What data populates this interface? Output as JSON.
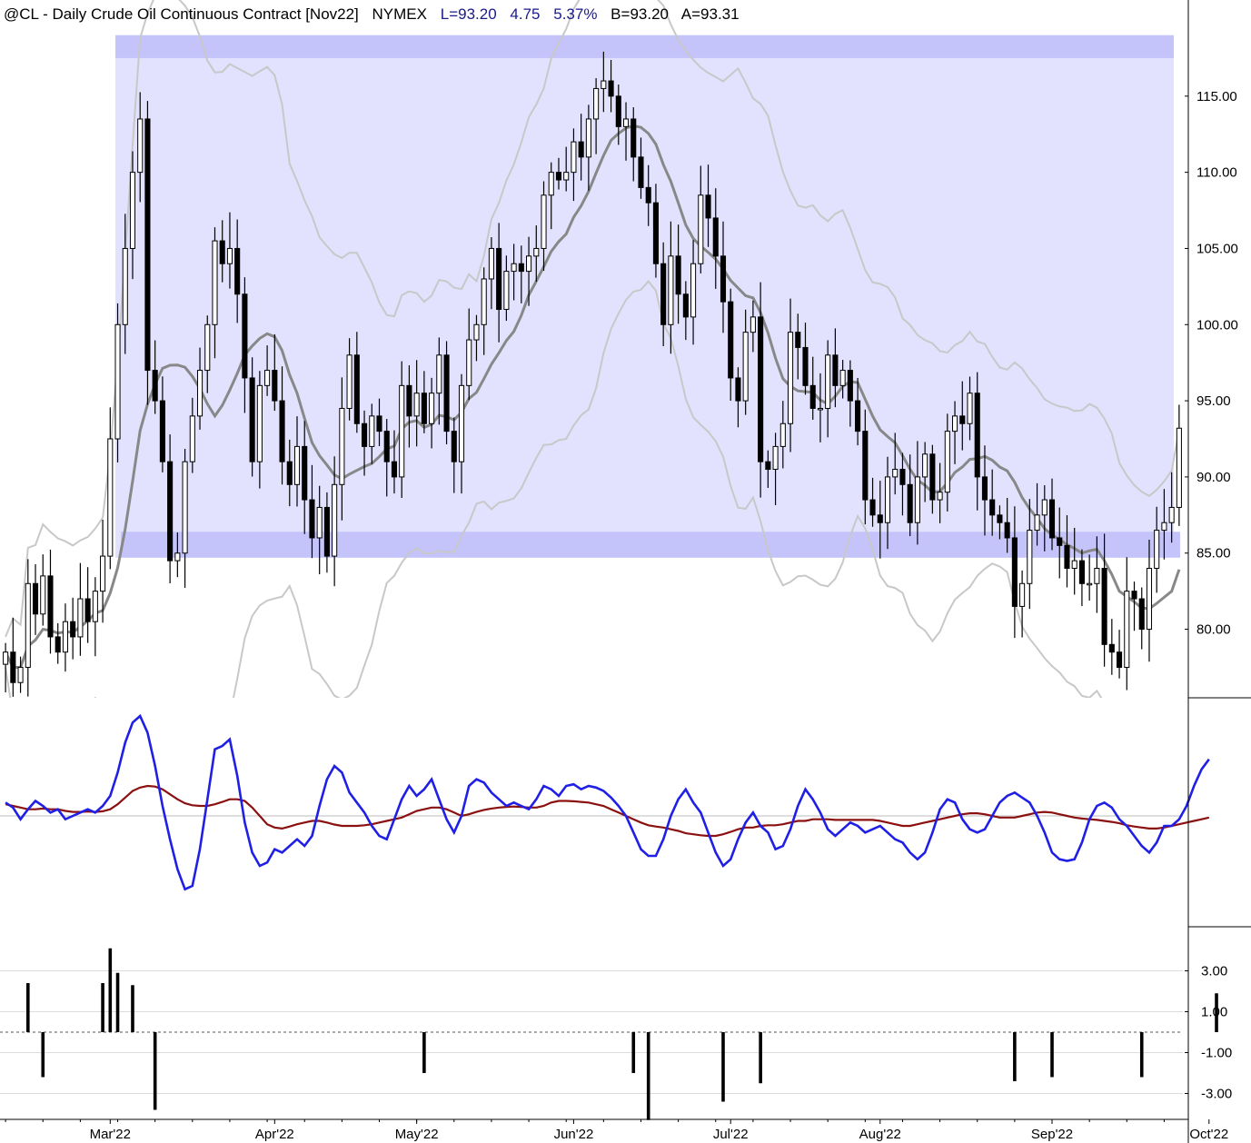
{
  "header": {
    "symbol_desc": "@CL - Daily  Crude Oil Continuous Contract [Nov22]",
    "exchange": "NYMEX",
    "last": "L=93.20",
    "change": "4.75",
    "change_pct": "5.37%",
    "bid": "B=93.20",
    "ask": "A=93.31"
  },
  "colors": {
    "range_fill": "#e2e2ff",
    "range_band": "#c4c4fa",
    "oscillator_fast": "#1f1fe6",
    "oscillator_slow": "#8b1010",
    "moving_average": "#888888",
    "bands": "#c8c8c8",
    "label_blue": "#1a1a8a"
  },
  "chart_data": [
    {
      "type": "candlestick",
      "panel": "price",
      "title": "@CL - Daily  Crude Oil Continuous Contract [Nov22]",
      "ylim": [
        75.5,
        120
      ],
      "yticks": [
        "80.00",
        "85.00",
        "90.00",
        "95.00",
        "100.00",
        "105.00",
        "110.00",
        "115.00"
      ],
      "x_month_labels": [
        {
          "label": "Mar'22",
          "index": 14
        },
        {
          "label": "Apr'22",
          "index": 36
        },
        {
          "label": "May'22",
          "index": 55
        },
        {
          "label": "Jun'22",
          "index": 76
        },
        {
          "label": "Jul'22",
          "index": 97
        },
        {
          "label": "Aug'22",
          "index": 117
        },
        {
          "label": "Sep'22",
          "index": 140
        },
        {
          "label": "Oct'22",
          "index": 161
        }
      ],
      "range_box": {
        "low": 84.7,
        "high": 119
      },
      "range_bands": [
        {
          "low": 117.5,
          "high": 119
        },
        {
          "low": 84.7,
          "high": 86.4
        }
      ],
      "close": [
        78.5,
        76.5,
        77.5,
        83.0,
        81.0,
        83.5,
        79.5,
        78.5,
        80.5,
        79.5,
        82.0,
        80.5,
        82.5,
        84.8,
        92.5,
        100.0,
        105.0,
        110.0,
        113.5,
        97.0,
        95.0,
        91.0,
        84.5,
        85.0,
        91.0,
        94.0,
        97.0,
        100.0,
        105.5,
        104.0,
        105.0,
        102.0,
        96.5,
        91.0,
        96.0,
        97.0,
        95.0,
        91.0,
        89.5,
        92.0,
        88.5,
        86.0,
        88.0,
        84.8,
        89.5,
        94.5,
        98.0,
        93.5,
        92.0,
        94.0,
        93.0,
        91.0,
        90.0,
        96.0,
        94.0,
        95.5,
        93.5,
        95.5,
        98.0,
        93.0,
        91.0,
        96.0,
        99.0,
        100.0,
        103.0,
        105.0,
        101.0,
        103.5,
        104.0,
        103.5,
        104.5,
        105.0,
        108.5,
        110.0,
        109.5,
        110.0,
        112.0,
        111.0,
        113.5,
        115.5,
        116.0,
        115.0,
        113.0,
        113.5,
        111.0,
        109.0,
        108.0,
        104.0,
        100.0,
        104.5,
        102.0,
        100.5,
        104.0,
        108.5,
        107.0,
        104.5,
        101.5,
        96.5,
        95.0,
        99.5,
        100.5,
        91.0,
        90.5,
        92.0,
        93.5,
        99.5,
        98.5,
        96.0,
        94.5,
        94.5,
        98.0,
        96.0,
        97.0,
        95.0,
        93.0,
        88.5,
        87.5,
        87.0,
        90.0,
        90.5,
        89.5,
        87.0,
        90.0,
        91.5,
        88.5,
        89.0,
        93.0,
        94.0,
        93.5,
        95.5,
        90.0,
        88.5,
        87.5,
        87.0,
        86.0,
        81.5,
        83.0,
        86.5,
        87.5,
        88.5,
        86.0,
        85.5,
        84.0,
        84.5,
        83.0,
        83.0,
        84.0,
        79.0,
        78.5,
        77.5,
        82.5,
        82.0,
        80.0,
        84.0,
        86.5,
        87.0,
        88.0,
        93.2
      ]
    },
    {
      "type": "line",
      "panel": "oscillator",
      "ylim": [
        -3,
        3
      ],
      "zero_line": true,
      "series": [
        {
          "values": [
            0.4,
            0.25,
            -0.1,
            0.2,
            0.45,
            0.3,
            0.1,
            0.2,
            -0.1,
            0.0,
            0.1,
            0.2,
            0.1,
            0.3,
            0.6,
            1.3,
            2.2,
            2.8,
            3.0,
            2.5,
            1.5,
            0.3,
            -0.7,
            -1.6,
            -2.2,
            -2.1,
            -1.0,
            0.5,
            2.0,
            2.1,
            2.3,
            1.2,
            -0.2,
            -1.1,
            -1.5,
            -1.4,
            -1.0,
            -1.1,
            -0.9,
            -0.7,
            -0.9,
            -0.6,
            0.3,
            1.1,
            1.5,
            1.3,
            0.7,
            0.4,
            0.1,
            -0.3,
            -0.6,
            -0.7,
            -0.1,
            0.5,
            0.9,
            0.6,
            0.8,
            1.1,
            0.5,
            -0.1,
            -0.5,
            0.0,
            0.9,
            1.1,
            1.0,
            0.7,
            0.5,
            0.3,
            0.4,
            0.3,
            0.2,
            0.5,
            0.9,
            0.8,
            0.6,
            0.9,
            0.95,
            0.8,
            0.9,
            0.85,
            0.75,
            0.55,
            0.3,
            0.0,
            -0.5,
            -1.0,
            -1.2,
            -1.2,
            -0.7,
            0.0,
            0.5,
            0.8,
            0.4,
            0.1,
            -0.5,
            -1.1,
            -1.5,
            -1.3,
            -0.7,
            -0.2,
            0.1,
            -0.3,
            -0.5,
            -1.0,
            -0.9,
            -0.4,
            0.3,
            0.8,
            0.5,
            0.1,
            -0.4,
            -0.6,
            -0.4,
            -0.2,
            -0.3,
            -0.5,
            -0.4,
            -0.3,
            -0.5,
            -0.7,
            -0.8,
            -1.1,
            -1.3,
            -1.1,
            -0.5,
            0.2,
            0.5,
            0.4,
            -0.1,
            -0.4,
            -0.5,
            -0.4,
            0.0,
            0.4,
            0.6,
            0.7,
            0.55,
            0.4,
            0.0,
            -0.5,
            -1.1,
            -1.3,
            -1.35,
            -1.3,
            -0.8,
            -0.1,
            0.3,
            0.4,
            0.25,
            -0.1,
            -0.3,
            -0.6,
            -0.9,
            -1.1,
            -0.8,
            -0.3,
            -0.3,
            -0.1,
            0.3,
            0.9,
            1.4,
            1.7
          ]
        },
        {
          "values": [
            0.35,
            0.3,
            0.25,
            0.2,
            0.2,
            0.22,
            0.2,
            0.2,
            0.15,
            0.12,
            0.12,
            0.13,
            0.12,
            0.14,
            0.2,
            0.35,
            0.55,
            0.75,
            0.85,
            0.9,
            0.88,
            0.8,
            0.65,
            0.5,
            0.38,
            0.32,
            0.3,
            0.3,
            0.35,
            0.42,
            0.5,
            0.5,
            0.45,
            0.25,
            0.0,
            -0.25,
            -0.35,
            -0.38,
            -0.32,
            -0.25,
            -0.2,
            -0.15,
            -0.15,
            -0.2,
            -0.26,
            -0.3,
            -0.3,
            -0.3,
            -0.28,
            -0.25,
            -0.2,
            -0.15,
            -0.1,
            -0.05,
            0.05,
            0.15,
            0.2,
            0.25,
            0.25,
            0.2,
            0.1,
            0.0,
            0.05,
            0.12,
            0.18,
            0.22,
            0.25,
            0.27,
            0.28,
            0.27,
            0.25,
            0.25,
            0.3,
            0.4,
            0.45,
            0.45,
            0.44,
            0.42,
            0.4,
            0.35,
            0.3,
            0.2,
            0.1,
            0.0,
            -0.1,
            -0.2,
            -0.28,
            -0.32,
            -0.35,
            -0.4,
            -0.45,
            -0.52,
            -0.55,
            -0.58,
            -0.6,
            -0.6,
            -0.55,
            -0.48,
            -0.4,
            -0.35,
            -0.35,
            -0.3,
            -0.28,
            -0.28,
            -0.25,
            -0.2,
            -0.15,
            -0.15,
            -0.1,
            -0.1,
            -0.1,
            -0.12,
            -0.12,
            -0.12,
            -0.12,
            -0.12,
            -0.12,
            -0.15,
            -0.2,
            -0.25,
            -0.3,
            -0.3,
            -0.25,
            -0.2,
            -0.15,
            -0.1,
            -0.05,
            0.0,
            0.05,
            0.08,
            0.08,
            0.05,
            0.0,
            -0.05,
            -0.05,
            -0.05,
            0.0,
            0.05,
            0.1,
            0.12,
            0.1,
            0.05,
            0.0,
            -0.05,
            -0.08,
            -0.1,
            -0.12,
            -0.15,
            -0.18,
            -0.22,
            -0.28,
            -0.32,
            -0.35,
            -0.38,
            -0.38,
            -0.35,
            -0.3,
            -0.25,
            -0.2,
            -0.15,
            -0.1,
            -0.05
          ]
        }
      ]
    },
    {
      "type": "bar",
      "panel": "histogram",
      "ylim": [
        -4.3,
        4.3
      ],
      "yticks": [
        "3.00",
        "1.00",
        "-1.00",
        "-3.00"
      ],
      "bars": [
        {
          "index": 3,
          "value": 2.4
        },
        {
          "index": 5,
          "value": -2.2
        },
        {
          "index": 13,
          "value": 2.4
        },
        {
          "index": 14,
          "value": 4.1
        },
        {
          "index": 15,
          "value": 2.9
        },
        {
          "index": 17,
          "value": 2.3
        },
        {
          "index": 20,
          "value": -3.8
        },
        {
          "index": 56,
          "value": -2.0
        },
        {
          "index": 84,
          "value": -2.0
        },
        {
          "index": 86,
          "value": -4.3
        },
        {
          "index": 96,
          "value": -3.4
        },
        {
          "index": 101,
          "value": -2.5
        },
        {
          "index": 135,
          "value": -2.4
        },
        {
          "index": 140,
          "value": -2.2
        },
        {
          "index": 152,
          "value": -2.2
        },
        {
          "index": 162,
          "value": 1.9
        }
      ]
    }
  ]
}
